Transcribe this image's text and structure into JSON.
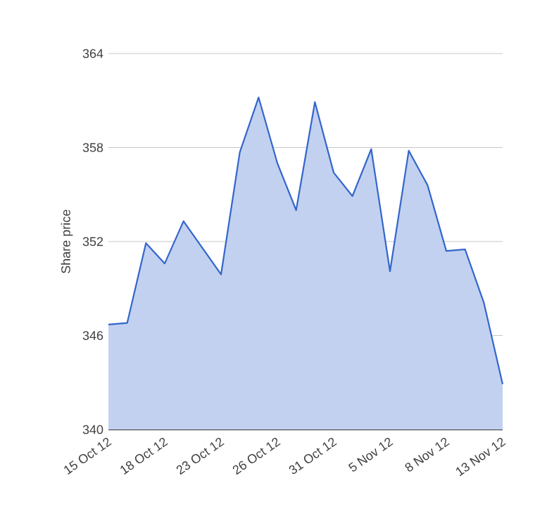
{
  "chart_data": {
    "type": "area",
    "ylabel": "Share price",
    "categories": [
      "15 Oct 12",
      null,
      null,
      "18 Oct 12",
      null,
      null,
      "23 Oct 12",
      null,
      null,
      "26 Oct 12",
      null,
      null,
      "31 Oct 12",
      null,
      null,
      "5 Nov 12",
      null,
      null,
      "8 Nov 12",
      null,
      null,
      "13 Nov 12"
    ],
    "series": [
      {
        "color": "#3366cc",
        "values": [
          346.7,
          346.8,
          351.9,
          350.6,
          353.3,
          351.6,
          349.9,
          357.7,
          361.2,
          357.0,
          354.0,
          360.9,
          356.4,
          354.9,
          357.9,
          350.1,
          357.8,
          355.6,
          351.4,
          351.5,
          348.1,
          342.9
        ]
      }
    ],
    "ylim": [
      340,
      364
    ],
    "yticks": [
      340,
      346,
      352,
      358,
      364
    ],
    "grid": "y"
  }
}
